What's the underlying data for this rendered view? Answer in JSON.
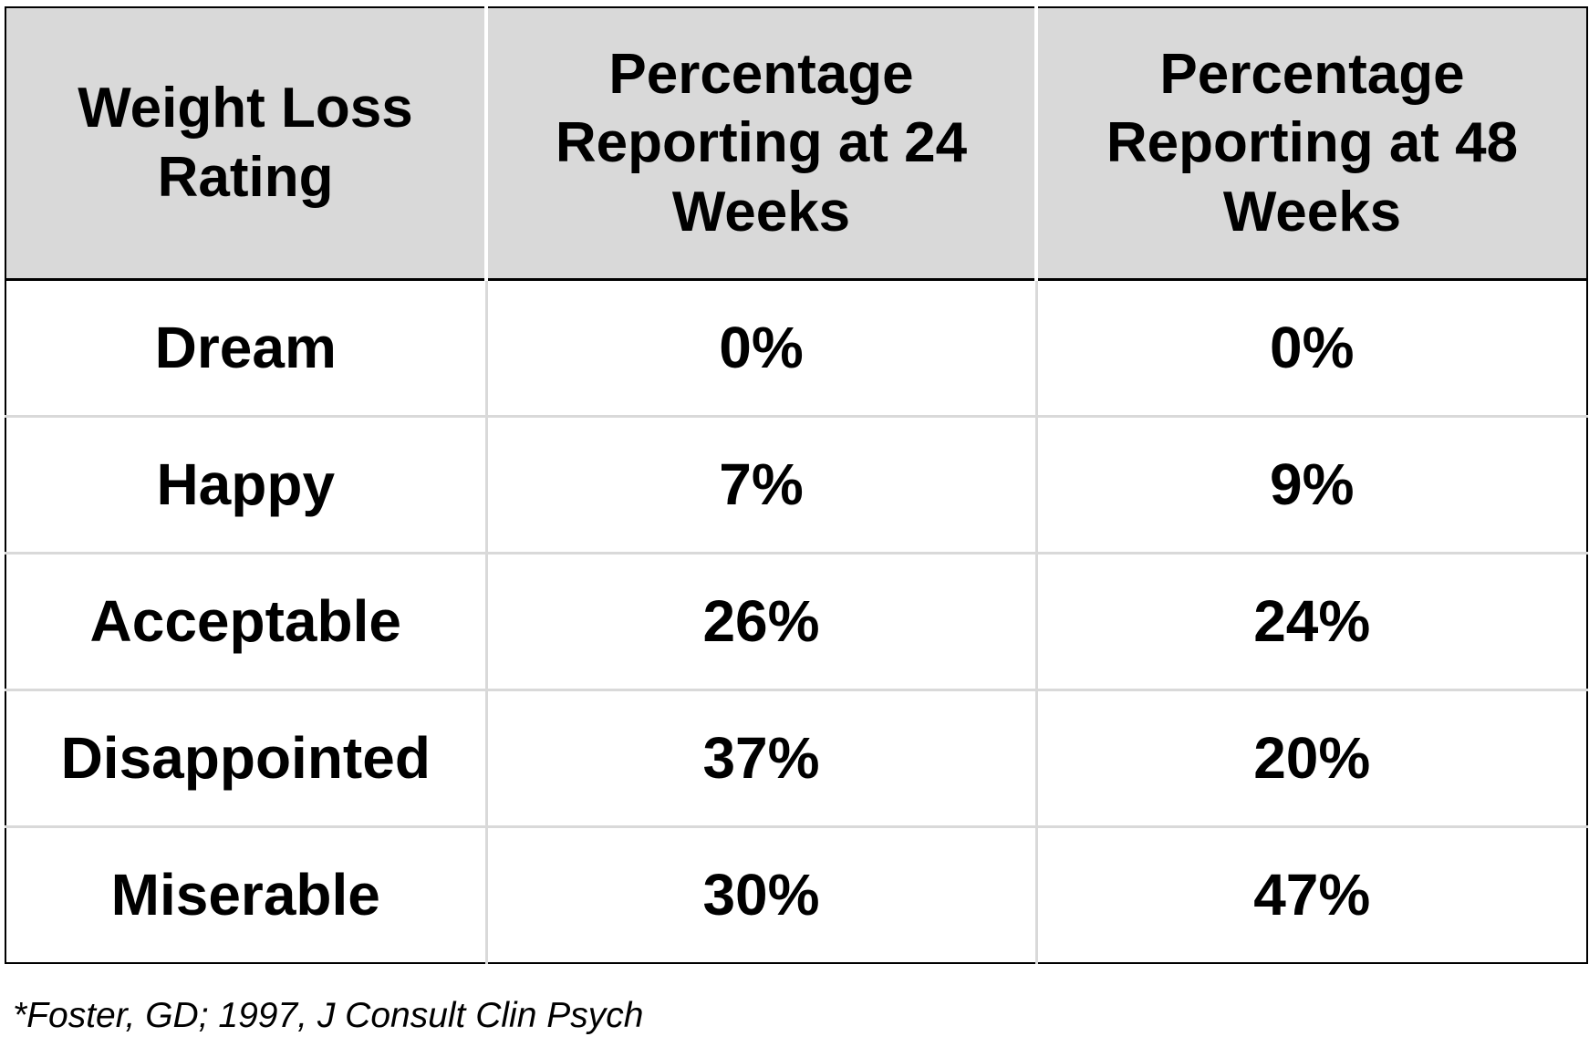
{
  "table": {
    "headers": [
      [
        "Weight Loss",
        "Rating"
      ],
      [
        "Percentage",
        "Reporting at 24",
        "Weeks"
      ],
      [
        "Percentage",
        "Reporting at 48",
        "Weeks"
      ]
    ],
    "rows": [
      [
        "Dream",
        "0%",
        "0%"
      ],
      [
        "Happy",
        "7%",
        "9%"
      ],
      [
        "Acceptable",
        "26%",
        "24%"
      ],
      [
        "Disappointed",
        "37%",
        "20%"
      ],
      [
        "Miserable",
        "30%",
        "47%"
      ]
    ],
    "colors": {
      "header_background": "#d9d9d9",
      "grid_line": "#d9d9d9",
      "outer_border": "#000000",
      "text": "#000000"
    }
  },
  "citation": "*Foster, GD; 1997, J Consult Clin Psych"
}
